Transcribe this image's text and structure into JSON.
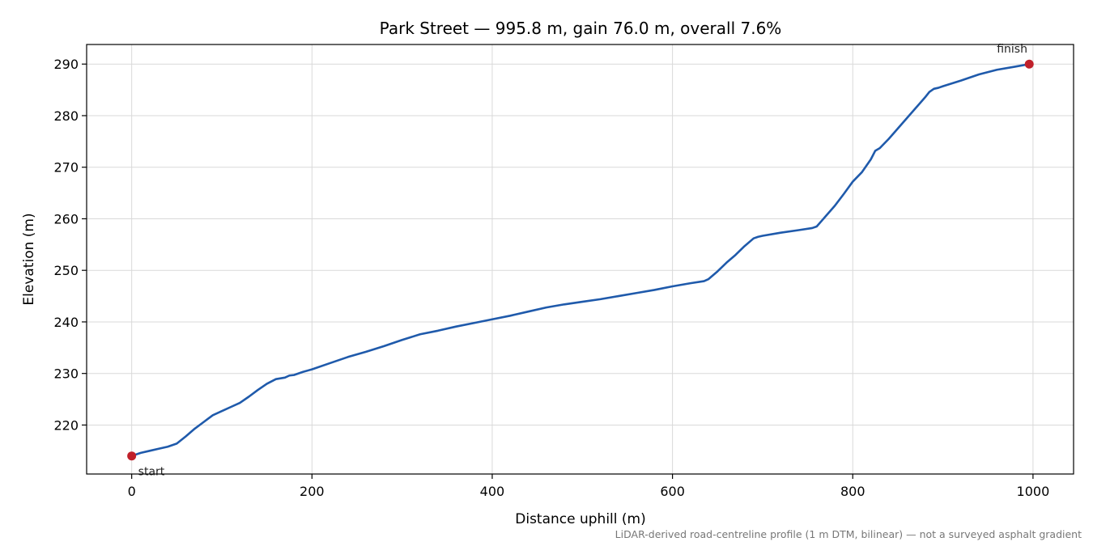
{
  "chart_data": {
    "type": "line",
    "title": "Park Street — 995.8 m, gain 76.0 m, overall 7.6%",
    "xlabel": "Distance uphill (m)",
    "ylabel": "Elevation (m)",
    "footnote": "LiDAR-derived road-centreline profile (1 m DTM, bilinear) — not a surveyed asphalt gradient",
    "xlim": [
      -50,
      1045
    ],
    "ylim": [
      210.5,
      293.8
    ],
    "xticks": [
      0,
      200,
      400,
      600,
      800,
      1000
    ],
    "yticks": [
      220,
      230,
      240,
      250,
      260,
      270,
      280,
      290
    ],
    "grid": true,
    "colors": {
      "line": "#1f5aab",
      "marker": "#c0202a"
    },
    "series": [
      {
        "x": [
          0,
          10,
          20,
          30,
          40,
          50,
          60,
          70,
          80,
          90,
          100,
          110,
          120,
          130,
          140,
          150,
          160,
          170,
          175,
          180,
          190,
          200,
          220,
          240,
          260,
          280,
          300,
          320,
          340,
          360,
          380,
          400,
          420,
          440,
          460,
          480,
          500,
          520,
          540,
          560,
          580,
          600,
          620,
          635,
          640,
          650,
          660,
          670,
          680,
          690,
          695,
          700,
          720,
          740,
          755,
          760,
          770,
          780,
          790,
          800,
          810,
          820,
          825,
          830,
          840,
          850,
          860,
          870,
          880,
          885,
          890,
          895,
          900,
          920,
          940,
          960,
          980,
          995.8
        ],
        "y": [
          214.0,
          214.6,
          215.0,
          215.4,
          215.8,
          216.4,
          217.8,
          219.3,
          220.6,
          221.9,
          222.7,
          223.5,
          224.3,
          225.5,
          226.8,
          228.0,
          228.9,
          229.2,
          229.6,
          229.7,
          230.3,
          230.8,
          232.0,
          233.2,
          234.2,
          235.3,
          236.5,
          237.6,
          238.3,
          239.1,
          239.8,
          240.5,
          241.2,
          242.0,
          242.8,
          243.4,
          243.9,
          244.4,
          245.0,
          245.6,
          246.2,
          246.9,
          247.5,
          247.9,
          248.3,
          249.8,
          251.5,
          253.0,
          254.7,
          256.2,
          256.5,
          256.7,
          257.3,
          257.8,
          258.2,
          258.5,
          260.5,
          262.5,
          264.8,
          267.2,
          269.0,
          271.5,
          273.2,
          273.7,
          275.5,
          277.5,
          279.5,
          281.5,
          283.5,
          284.6,
          285.2,
          285.4,
          285.7,
          286.8,
          288.0,
          288.9,
          289.5,
          290.0
        ]
      }
    ],
    "annotations": [
      {
        "label": "start",
        "x": 0,
        "y": 214.0
      },
      {
        "label": "finish",
        "x": 995.8,
        "y": 290.0
      }
    ]
  }
}
